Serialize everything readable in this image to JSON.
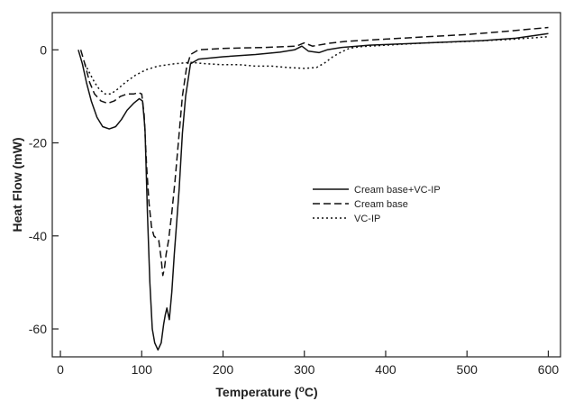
{
  "chart_data": {
    "type": "line",
    "xlabel": "Temperature (°C)",
    "xlabel_parts": [
      "Temperature (",
      "o",
      "C)"
    ],
    "ylabel": "Heat Flow (mW)",
    "xlim": [
      -10,
      615
    ],
    "ylim": [
      -66,
      8
    ],
    "xticks": [
      0,
      100,
      200,
      300,
      400,
      500,
      600
    ],
    "yticks": [
      0,
      -20,
      -40,
      -60
    ],
    "grid": false,
    "legend_position": "center-right",
    "series": [
      {
        "name": "Cream base+VC-IP",
        "style": "solid",
        "points": [
          [
            22,
            0
          ],
          [
            27,
            -3
          ],
          [
            32,
            -7
          ],
          [
            38,
            -11
          ],
          [
            45,
            -14.5
          ],
          [
            52,
            -16.5
          ],
          [
            60,
            -17
          ],
          [
            68,
            -16.5
          ],
          [
            75,
            -15
          ],
          [
            82,
            -13
          ],
          [
            90,
            -11.5
          ],
          [
            97,
            -10.5
          ],
          [
            101,
            -11
          ],
          [
            104,
            -17
          ],
          [
            107,
            -35
          ],
          [
            110,
            -50
          ],
          [
            113,
            -60
          ],
          [
            116,
            -63
          ],
          [
            120,
            -64.5
          ],
          [
            124,
            -63
          ],
          [
            127,
            -59
          ],
          [
            129,
            -57
          ],
          [
            131,
            -55.5
          ],
          [
            134,
            -58
          ],
          [
            137,
            -52
          ],
          [
            140,
            -44
          ],
          [
            143,
            -37
          ],
          [
            146,
            -30
          ],
          [
            150,
            -18
          ],
          [
            154,
            -10
          ],
          [
            160,
            -3
          ],
          [
            170,
            -2
          ],
          [
            200,
            -1.5
          ],
          [
            240,
            -1
          ],
          [
            270,
            -0.5
          ],
          [
            288,
            0
          ],
          [
            297,
            0.8
          ],
          [
            305,
            -0.3
          ],
          [
            318,
            -0.6
          ],
          [
            328,
            0
          ],
          [
            345,
            0.5
          ],
          [
            380,
            1
          ],
          [
            450,
            1.5
          ],
          [
            520,
            2
          ],
          [
            560,
            2.5
          ],
          [
            600,
            3.5
          ]
        ]
      },
      {
        "name": "Cream base",
        "style": "dashed",
        "points": [
          [
            25,
            0
          ],
          [
            30,
            -3
          ],
          [
            36,
            -7
          ],
          [
            42,
            -9.5
          ],
          [
            50,
            -11
          ],
          [
            58,
            -11.5
          ],
          [
            66,
            -11
          ],
          [
            74,
            -10
          ],
          [
            82,
            -9.5
          ],
          [
            90,
            -9.5
          ],
          [
            96,
            -9.2
          ],
          [
            100,
            -9.5
          ],
          [
            103,
            -14
          ],
          [
            106,
            -25
          ],
          [
            109,
            -33
          ],
          [
            112,
            -38
          ],
          [
            115,
            -40
          ],
          [
            118,
            -40.5
          ],
          [
            121,
            -41
          ],
          [
            124,
            -45
          ],
          [
            126,
            -48.5
          ],
          [
            128,
            -47
          ],
          [
            130,
            -44
          ],
          [
            133,
            -41
          ],
          [
            137,
            -35
          ],
          [
            141,
            -28
          ],
          [
            145,
            -20
          ],
          [
            150,
            -10
          ],
          [
            155,
            -4
          ],
          [
            160,
            -1
          ],
          [
            170,
            0
          ],
          [
            200,
            0.3
          ],
          [
            250,
            0.5
          ],
          [
            290,
            0.8
          ],
          [
            300,
            1.5
          ],
          [
            310,
            0.8
          ],
          [
            330,
            1.4
          ],
          [
            350,
            1.8
          ],
          [
            400,
            2.3
          ],
          [
            450,
            2.8
          ],
          [
            500,
            3.3
          ],
          [
            550,
            4
          ],
          [
            600,
            4.8
          ]
        ]
      },
      {
        "name": "VC-IP",
        "style": "dotted",
        "points": [
          [
            30,
            -3
          ],
          [
            36,
            -5
          ],
          [
            42,
            -7
          ],
          [
            48,
            -8.5
          ],
          [
            55,
            -9.5
          ],
          [
            62,
            -9.5
          ],
          [
            70,
            -8.5
          ],
          [
            80,
            -7
          ],
          [
            92,
            -5.5
          ],
          [
            105,
            -4.3
          ],
          [
            120,
            -3.5
          ],
          [
            140,
            -3
          ],
          [
            160,
            -2.7
          ],
          [
            180,
            -3
          ],
          [
            200,
            -3.2
          ],
          [
            220,
            -3.2
          ],
          [
            240,
            -3.5
          ],
          [
            260,
            -3.5
          ],
          [
            280,
            -3.8
          ],
          [
            300,
            -4
          ],
          [
            315,
            -3.8
          ],
          [
            325,
            -2.8
          ],
          [
            335,
            -1.5
          ],
          [
            345,
            -0.5
          ],
          [
            355,
            0.3
          ],
          [
            370,
            0.7
          ],
          [
            400,
            1
          ],
          [
            450,
            1.5
          ],
          [
            500,
            1.8
          ],
          [
            550,
            2.2
          ],
          [
            600,
            2.8
          ]
        ]
      }
    ]
  }
}
